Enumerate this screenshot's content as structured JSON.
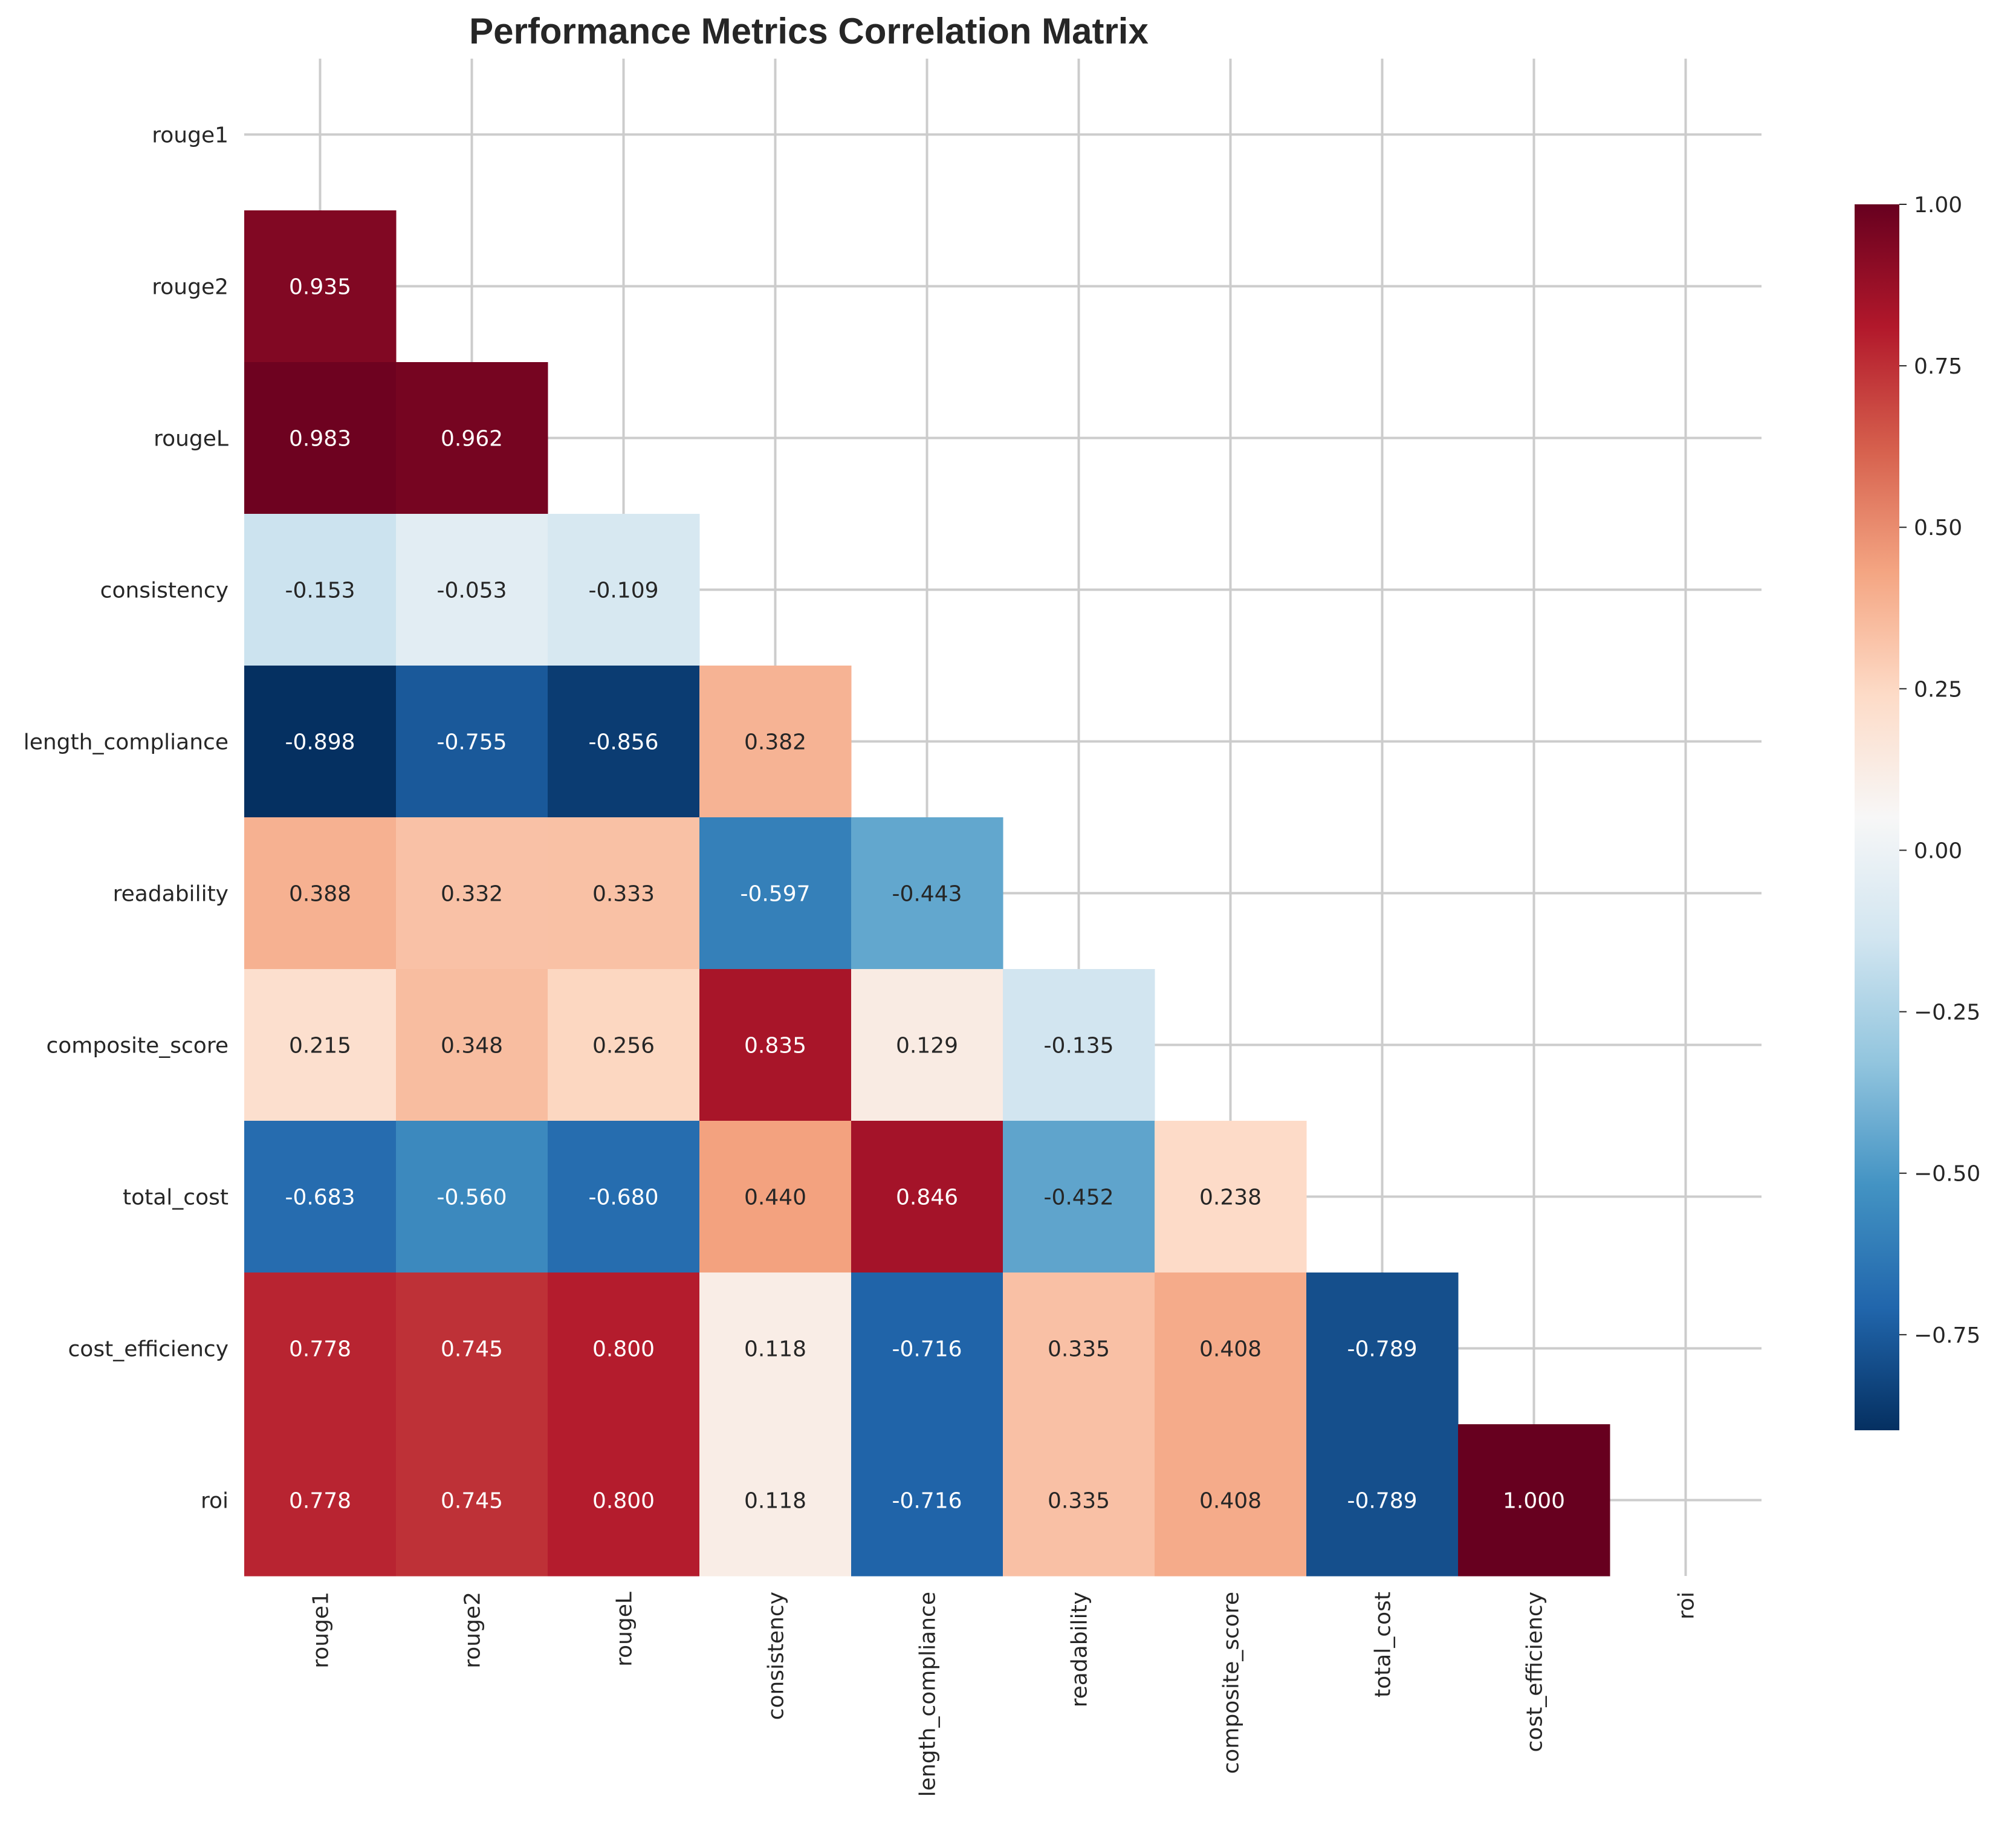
{
  "chart_data": {
    "type": "heatmap",
    "title": "Performance Metrics Correlation Matrix",
    "labels": [
      "rouge1",
      "rouge2",
      "rougeL",
      "consistency",
      "length_compliance",
      "readability",
      "composite_score",
      "total_cost",
      "cost_efficiency",
      "roi"
    ],
    "mask": "upper-triangle-and-diagonal",
    "values": [
      [
        null,
        null,
        null,
        null,
        null,
        null,
        null,
        null,
        null,
        null
      ],
      [
        0.935,
        null,
        null,
        null,
        null,
        null,
        null,
        null,
        null,
        null
      ],
      [
        0.983,
        0.962,
        null,
        null,
        null,
        null,
        null,
        null,
        null,
        null
      ],
      [
        -0.153,
        -0.053,
        -0.109,
        null,
        null,
        null,
        null,
        null,
        null,
        null
      ],
      [
        -0.898,
        -0.755,
        -0.856,
        0.382,
        null,
        null,
        null,
        null,
        null,
        null
      ],
      [
        0.388,
        0.332,
        0.333,
        -0.597,
        -0.443,
        null,
        null,
        null,
        null,
        null
      ],
      [
        0.215,
        0.348,
        0.256,
        0.835,
        0.129,
        -0.135,
        null,
        null,
        null,
        null
      ],
      [
        -0.683,
        -0.56,
        -0.68,
        0.44,
        0.846,
        -0.452,
        0.238,
        null,
        null,
        null
      ],
      [
        0.778,
        0.745,
        0.8,
        0.118,
        -0.716,
        0.335,
        0.408,
        -0.789,
        null,
        null
      ],
      [
        0.778,
        0.745,
        0.8,
        0.118,
        -0.716,
        0.335,
        0.408,
        -0.789,
        1.0,
        null
      ]
    ],
    "value_format": "3 decimals",
    "colormap": "RdBu_r",
    "colorbar": {
      "min": -0.898,
      "max": 1.0,
      "ticks": [
        1.0,
        0.75,
        0.5,
        0.25,
        0.0,
        -0.25,
        -0.5,
        -0.75
      ],
      "tick_labels": [
        "1.00",
        "0.75",
        "0.50",
        "0.25",
        "0.00",
        "−0.25",
        "−0.50",
        "−0.75"
      ],
      "position": "right"
    },
    "grid": true
  }
}
